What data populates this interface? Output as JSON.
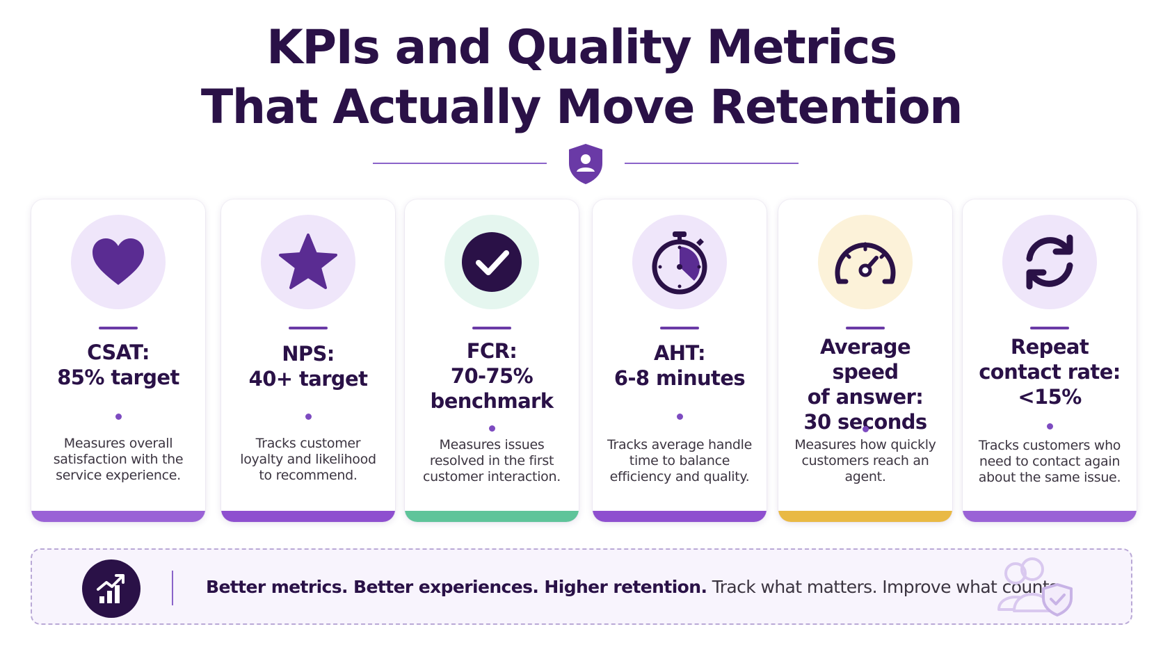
{
  "title": {
    "line1": "KPIs and Quality Metrics",
    "line2": "That Actually Move Retention"
  },
  "colors": {
    "primary": "#2a1147",
    "accent": "#6a3aa6",
    "purple_bar": "#9a62d6",
    "green_bar": "#5fc49a",
    "yellow_bar": "#e9b944"
  },
  "header_icon": "shield-user-icon",
  "cards": [
    {
      "icon": "heart-icon",
      "heading": "CSAT:\n85% target",
      "description": "Measures overall\nsatisfaction with the\nservice experience.",
      "bar_color": "#9a62d6"
    },
    {
      "icon": "star-icon",
      "heading": "NPS:\n40+ target",
      "description": "Tracks customer\nloyalty and likelihood\nto recommend.",
      "bar_color": "#8e4fcf"
    },
    {
      "icon": "check-circle-icon",
      "heading": "FCR:\n70-75%\nbenchmark",
      "description": "Measures issues\nresolved in the first\ncustomer interaction.",
      "bar_color": "#5fc49a"
    },
    {
      "icon": "stopwatch-icon",
      "heading": "AHT:\n6-8 minutes",
      "description": "Tracks average handle\ntime to balance\nefficiency and quality.",
      "bar_color": "#8e4fcf"
    },
    {
      "icon": "speedometer-icon",
      "heading": "Average speed\nof answer:\n30 seconds",
      "description": "Measures how quickly\ncustomers reach an\nagent.",
      "bar_color": "#e9b944"
    },
    {
      "icon": "refresh-icon",
      "heading": "Repeat\ncontact rate:\n<15%",
      "description": "Tracks customers who\nneed to contact again\nabout the same issue.",
      "bar_color": "#9a62d6"
    }
  ],
  "footer": {
    "icon": "growth-chart-icon",
    "tagline_bold": "Better metrics. Better experiences. Higher retention.",
    "tagline_rest": " Track what matters. Improve what counts.",
    "decoration_icon": "users-shield-icon"
  }
}
